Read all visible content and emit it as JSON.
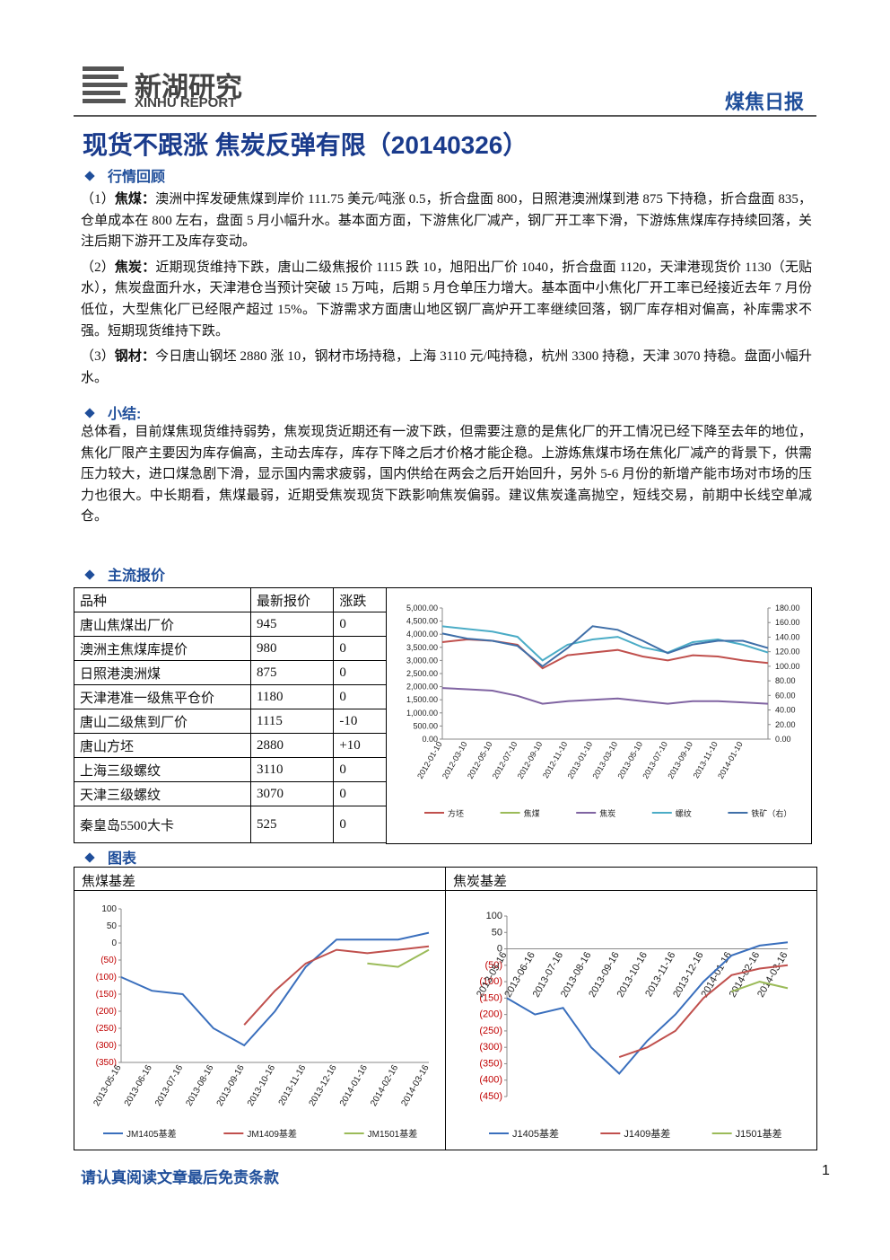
{
  "header": {
    "logo_cn": "新湖研究",
    "logo_en": "XINHU REPORT",
    "report_type": "煤焦日报"
  },
  "title": "现货不跟涨 焦炭反弹有限（20140326）",
  "review": {
    "heading": "行情回顾",
    "items": [
      {
        "index": "（1）",
        "label": "焦煤：",
        "text": "澳洲中挥发硬焦煤到岸价 111.75 美元/吨涨 0.5，折合盘面 800，日照港澳洲煤到港 875 下持稳，折合盘面 835，仓单成本在 800 左右，盘面 5 月小幅升水。基本面方面，下游焦化厂减产，钢厂开工率下滑，下游炼焦煤库存持续回落，关注后期下游开工及库存变动。"
      },
      {
        "index": "（2）",
        "label": "焦炭：",
        "text": "近期现货维持下跌，唐山二级焦报价 1115 跌 10，旭阳出厂价 1040，折合盘面 1120，天津港现货价 1130（无贴水），焦炭盘面升水，天津港仓当预计突破 15 万吨，后期 5 月仓单压力增大。基本面中小焦化厂开工率已经接近去年 7 月份低位，大型焦化厂已经限产超过 15%。下游需求方面唐山地区钢厂高炉开工率继续回落，钢厂库存相对偏高，补库需求不强。短期现货维持下跌。"
      },
      {
        "index": "（3）",
        "label": "钢材：",
        "text": "今日唐山钢坯 2880 涨 10，钢材市场持稳，上海 3110 元/吨持稳，杭州 3300 持稳，天津 3070 持稳。盘面小幅升水。"
      }
    ]
  },
  "summary": {
    "heading": "小结:",
    "text": "总体看，目前煤焦现货维持弱势，焦炭现货近期还有一波下跌，但需要注意的是焦化厂的开工情况已经下降至去年的地位，焦化厂限产主要因为库存偏高，主动去库存，库存下降之后才价格才能企稳。上游炼焦煤市场在焦化厂减产的背景下，供需压力较大，进口煤急剧下滑，显示国内需求疲弱，国内供给在两会之后开始回升，另外 5-6 月份的新增产能市场对市场的压力也很大。中长期看，焦煤最弱，近期受焦炭现货下跌影响焦炭偏弱。建议焦炭逢高抛空，短线交易，前期中长线空单减仓。"
  },
  "quotes": {
    "heading": "主流报价",
    "columns": [
      "品种",
      "最新报价",
      "涨跌"
    ],
    "rows": [
      [
        "唐山焦煤出厂价",
        "945",
        "0"
      ],
      [
        "澳洲主焦煤库提价",
        "980",
        "0"
      ],
      [
        "日照港澳洲煤",
        "875",
        "0"
      ],
      [
        "天津港准一级焦平仓价",
        "1180",
        "0"
      ],
      [
        "唐山二级焦到厂价",
        "1115",
        "-10"
      ],
      [
        "唐山方坯",
        "2880",
        "+10"
      ],
      [
        "上海三级螺纹",
        "3110",
        "0"
      ],
      [
        "天津三级螺纹",
        "3070",
        "0"
      ],
      [
        "秦皇岛5500大卡",
        "525",
        "0"
      ]
    ]
  },
  "charts_heading": "图表",
  "chart_data": [
    {
      "type": "line",
      "categories": [
        "2012-01-10",
        "2012-03-10",
        "2012-05-10",
        "2012-07-10",
        "2012-09-10",
        "2012-11-10",
        "2013-01-10",
        "2013-03-10",
        "2013-05-10",
        "2013-07-10",
        "2013-09-10",
        "2013-11-10",
        "2014-01-10",
        null
      ],
      "ylim": [
        0,
        5000
      ],
      "yticks": [
        {
          "value": 0,
          "label": "0.00"
        },
        {
          "value": 500,
          "label": "500.00"
        },
        {
          "value": 1000,
          "label": "1,000.00"
        },
        {
          "value": 1500,
          "label": "1,500.00"
        },
        {
          "value": 2000,
          "label": "2,000.00"
        },
        {
          "value": 2500,
          "label": "2,500.00"
        },
        {
          "value": 3000,
          "label": "3,000.00"
        },
        {
          "value": 3500,
          "label": "3,500.00"
        },
        {
          "value": 4000,
          "label": "4,000.00"
        },
        {
          "value": 4500,
          "label": "4,500.00"
        },
        {
          "value": 5000,
          "label": "5,000.00"
        }
      ],
      "y2lim": [
        0,
        180
      ],
      "y2ticks": [
        {
          "value": 0,
          "label": "0.00"
        },
        {
          "value": 20,
          "label": "20.00"
        },
        {
          "value": 40,
          "label": "40.00"
        },
        {
          "value": 60,
          "label": "60.00"
        },
        {
          "value": 80,
          "label": "80.00"
        },
        {
          "value": 100,
          "label": "100.00"
        },
        {
          "value": 120,
          "label": "120.00"
        },
        {
          "value": 140,
          "label": "140.00"
        },
        {
          "value": 160,
          "label": "160.00"
        },
        {
          "value": 180,
          "label": "180.00"
        }
      ],
      "series": [
        {
          "name": "方坯",
          "color": "#c0504d",
          "values": [
            3700,
            3800,
            3750,
            3600,
            2700,
            3200,
            3300,
            3400,
            3150,
            3000,
            3200,
            3150,
            3000,
            2900
          ]
        },
        {
          "name": "焦煤",
          "color": "#9bbb59",
          "values": [
            null,
            null,
            null,
            null,
            null,
            null,
            null,
            null,
            null,
            null,
            null,
            null,
            null,
            null
          ]
        },
        {
          "name": "焦炭",
          "color": "#8064a2",
          "values": [
            1950,
            1900,
            1850,
            1650,
            1350,
            1450,
            1500,
            1550,
            1450,
            1350,
            1450,
            1450,
            1400,
            1350
          ]
        },
        {
          "name": "螺纹",
          "color": "#4bacc6",
          "values": [
            4300,
            4200,
            4100,
            3900,
            3000,
            3600,
            3800,
            3900,
            3500,
            3300,
            3700,
            3800,
            3600,
            3300
          ]
        },
        {
          "name": "铁矿（右）",
          "color": "#3f6fa8",
          "axis": "y2",
          "values": [
            145,
            138,
            135,
            128,
            100,
            125,
            155,
            150,
            135,
            118,
            130,
            135,
            135,
            125
          ]
        }
      ]
    },
    {
      "type": "line",
      "title": "焦煤基差",
      "categories": [
        "2013-05-16",
        "2013-06-16",
        "2013-07-16",
        "2013-08-16",
        "2013-09-16",
        "2013-10-16",
        "2013-11-16",
        "2013-12-16",
        "2014-01-16",
        "2014-02-16",
        "2014-03-16"
      ],
      "ylim": [
        -350,
        100
      ],
      "yticks": [
        100,
        50,
        0,
        {
          "value": -50,
          "label": "(50)"
        },
        {
          "value": -100,
          "label": "(100)"
        },
        {
          "value": -150,
          "label": "(150)"
        },
        {
          "value": -200,
          "label": "(200)"
        },
        {
          "value": -250,
          "label": "(250)"
        },
        {
          "value": -300,
          "label": "(300)"
        },
        {
          "value": -350,
          "label": "(350)"
        }
      ],
      "series": [
        {
          "name": "JM1405基差",
          "color": "#3a6fbd",
          "values": [
            -100,
            -140,
            -150,
            -250,
            -300,
            -200,
            -70,
            10,
            10,
            10,
            30
          ]
        },
        {
          "name": "JM1409基差",
          "color": "#c0504d",
          "values": [
            null,
            null,
            null,
            null,
            -240,
            -140,
            -60,
            -20,
            -30,
            -20,
            -10
          ]
        },
        {
          "name": "JM1501基差",
          "color": "#9bbb59",
          "values": [
            null,
            null,
            null,
            null,
            null,
            null,
            null,
            null,
            -60,
            -70,
            -20
          ]
        }
      ]
    },
    {
      "type": "line",
      "title": "焦炭基差",
      "categories": [
        "2013-05-16",
        "2013-06-16",
        "2013-07-16",
        "2013-08-16",
        "2013-09-16",
        "2013-10-16",
        "2013-11-16",
        "2013-12-16",
        "2014-01-16",
        "2014-02-16",
        "2014-03-16"
      ],
      "ylim": [
        -450,
        100
      ],
      "yticks": [
        100,
        50,
        0,
        {
          "value": -50,
          "label": "(50)"
        },
        {
          "value": -100,
          "label": "(100)"
        },
        {
          "value": -150,
          "label": "(150)"
        },
        {
          "value": -200,
          "label": "(200)"
        },
        {
          "value": -250,
          "label": "(250)"
        },
        {
          "value": -300,
          "label": "(300)"
        },
        {
          "value": -350,
          "label": "(350)"
        },
        {
          "value": -400,
          "label": "(400)"
        },
        {
          "value": -450,
          "label": "(450)"
        }
      ],
      "series": [
        {
          "name": "J1405基差",
          "color": "#3a6fbd",
          "values": [
            -150,
            -200,
            -180,
            -300,
            -380,
            -280,
            -200,
            -100,
            -20,
            10,
            20
          ]
        },
        {
          "name": "J1409基差",
          "color": "#c0504d",
          "values": [
            null,
            null,
            null,
            null,
            -330,
            -300,
            -250,
            -150,
            -80,
            -60,
            -50
          ]
        },
        {
          "name": "J1501基差",
          "color": "#9bbb59",
          "values": [
            null,
            null,
            null,
            null,
            null,
            null,
            null,
            null,
            -130,
            -100,
            -120
          ]
        }
      ]
    }
  ],
  "footer": {
    "disclaimer": "请认真阅读文章最后免责条款",
    "page": "1"
  }
}
